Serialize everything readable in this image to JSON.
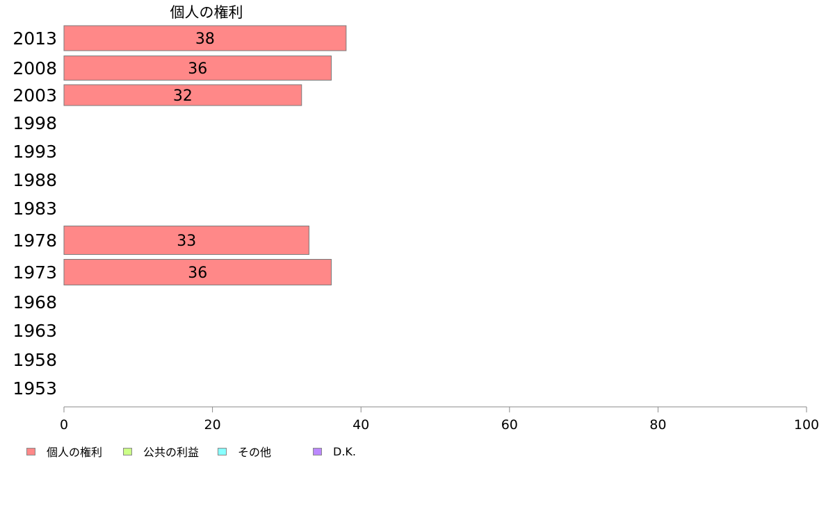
{
  "chart_data": {
    "type": "bar",
    "orientation": "horizontal",
    "stacked": true,
    "title": "個人の権利",
    "categories": [
      "2013",
      "2008",
      "2003",
      "1998",
      "1993",
      "1988",
      "1983",
      "1978",
      "1973",
      "1968",
      "1963",
      "1958",
      "1953"
    ],
    "series": [
      {
        "name": "個人の権利",
        "color": "#ff8888",
        "values": [
          38,
          36,
          32,
          null,
          null,
          null,
          null,
          33,
          36,
          null,
          null,
          null,
          null
        ]
      },
      {
        "name": "公共の利益",
        "color": "#ccff88",
        "values": [
          null,
          null,
          null,
          null,
          null,
          null,
          null,
          null,
          null,
          null,
          null,
          null,
          null
        ]
      },
      {
        "name": "その他",
        "color": "#88ffff",
        "values": [
          null,
          null,
          null,
          null,
          null,
          null,
          null,
          null,
          null,
          null,
          null,
          null,
          null
        ]
      },
      {
        "name": "D.K.",
        "color": "#bb88ff",
        "values": [
          null,
          null,
          null,
          null,
          null,
          null,
          null,
          null,
          null,
          null,
          null,
          null,
          null
        ]
      }
    ],
    "xlim": [
      0,
      100
    ],
    "xticks": [
      0,
      20,
      40,
      60,
      80,
      100
    ],
    "grid": false,
    "legend_position": "bottom-left"
  }
}
